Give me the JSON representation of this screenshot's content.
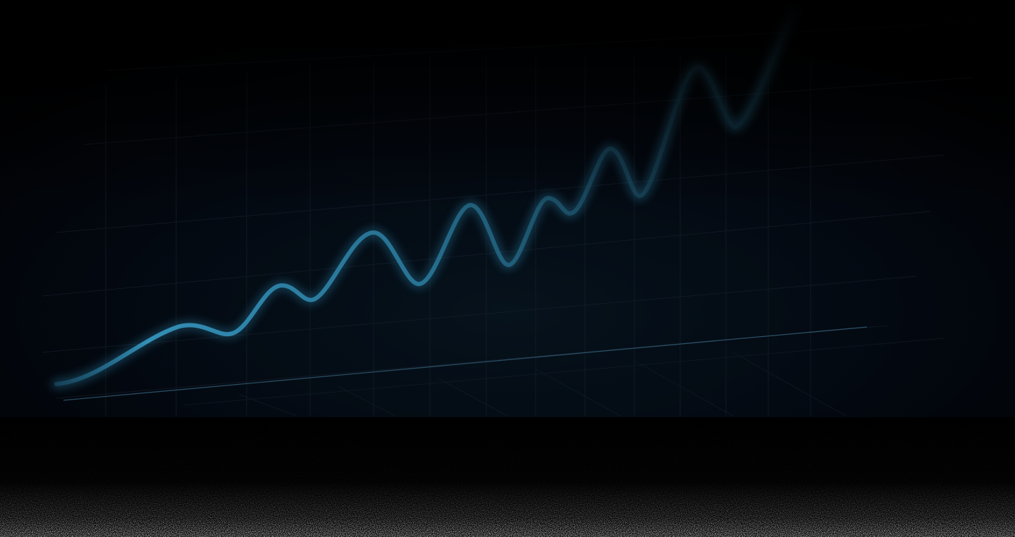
{
  "hero": {
    "background_color": "#000000",
    "accent_color": "#2f8fb8",
    "grid_color": "#1a2430",
    "floor_line_color": "#3a6a84",
    "icon": "rising-trend-line-graphic"
  }
}
